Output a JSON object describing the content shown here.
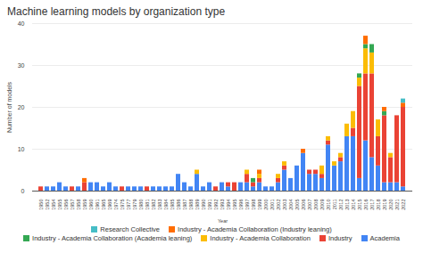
{
  "chart_data": {
    "type": "bar",
    "stacked": true,
    "grid": true,
    "legend": "bottom",
    "title": "Machine learning models by organization type",
    "x_label": "Year",
    "y_label": "Number of models",
    "categories": [
      "1950",
      "1952",
      "1954",
      "1955",
      "1956",
      "1957",
      "1958",
      "1959",
      "1960",
      "1961",
      "1965",
      "1969",
      "1974",
      "1975",
      "1977",
      "1979",
      "1980",
      "1981",
      "1982",
      "1983",
      "1984",
      "1985",
      "1986",
      "1987",
      "1988",
      "1989",
      "1990",
      "1991",
      "1992",
      "1993",
      "1994",
      "1995",
      "1996",
      "1997",
      "1998",
      "1999",
      "2000",
      "2001",
      "2002",
      "2003",
      "2004",
      "2005",
      "2006",
      "2007",
      "2008",
      "2009",
      "2010",
      "2011",
      "2012",
      "2013",
      "2014",
      "2015",
      "2016",
      "2017",
      "2018",
      "2019",
      "2020",
      "2021",
      "2022"
    ],
    "ylim": [
      0,
      40
    ],
    "yticks": [
      0,
      10,
      20,
      30,
      40
    ],
    "series": [
      {
        "name": "Academia",
        "color": "#4285f4",
        "values": [
          0,
          1,
          1,
          2,
          1,
          0,
          1,
          0,
          2,
          2,
          1,
          2,
          1,
          0,
          1,
          1,
          1,
          0,
          1,
          1,
          1,
          1,
          4,
          2,
          1,
          4,
          1,
          2,
          0,
          2,
          1,
          0,
          2,
          2,
          1,
          2,
          1,
          1,
          2,
          5,
          3,
          6,
          9,
          4,
          4,
          3,
          11,
          6,
          7,
          13,
          13,
          3,
          12,
          8,
          6,
          2,
          2,
          2,
          1
        ]
      },
      {
        "name": "Industry",
        "color": "#ea4335",
        "values": [
          1,
          0,
          0,
          0,
          0,
          1,
          0,
          2,
          0,
          0,
          0,
          0,
          0,
          1,
          0,
          0,
          0,
          1,
          0,
          0,
          0,
          0,
          0,
          0,
          0,
          0,
          0,
          0,
          1,
          0,
          1,
          2,
          0,
          2,
          1,
          1,
          0,
          0,
          1,
          1,
          0,
          0,
          0,
          1,
          1,
          1,
          1,
          0,
          1,
          0,
          2,
          22,
          16,
          20,
          7,
          16,
          6,
          16,
          19
        ]
      },
      {
        "name": "Industry - Academia Collaboration",
        "color": "#fbbc04",
        "values": [
          0,
          0,
          0,
          0,
          0,
          0,
          0,
          0,
          0,
          0,
          0,
          0,
          0,
          0,
          0,
          0,
          0,
          0,
          0,
          0,
          0,
          0,
          0,
          0,
          0,
          1,
          0,
          0,
          0,
          0,
          0,
          0,
          0,
          1,
          0,
          1,
          0,
          0,
          1,
          1,
          0,
          0,
          0,
          0,
          0,
          2,
          1,
          1,
          1,
          3,
          4,
          2,
          6,
          5,
          4,
          0,
          1,
          0,
          0
        ]
      },
      {
        "name": "Industry - Academia Collaboration (Academia leaning)",
        "color": "#34a853",
        "values": [
          0,
          0,
          0,
          0,
          0,
          0,
          0,
          0,
          0,
          0,
          0,
          0,
          0,
          0,
          0,
          0,
          0,
          0,
          0,
          0,
          0,
          0,
          0,
          0,
          0,
          0,
          0,
          0,
          0,
          0,
          0,
          0,
          0,
          0,
          1,
          0,
          0,
          0,
          0,
          0,
          0,
          0,
          0,
          0,
          0,
          0,
          0,
          0,
          0,
          0,
          0,
          1,
          1,
          2,
          0,
          1,
          0,
          0,
          0
        ]
      },
      {
        "name": "Industry - Academia Collaboration (Industry leaning)",
        "color": "#ff6d01",
        "values": [
          0,
          0,
          0,
          0,
          0,
          0,
          0,
          1,
          0,
          0,
          0,
          0,
          0,
          0,
          0,
          0,
          0,
          0,
          0,
          0,
          0,
          0,
          0,
          0,
          0,
          0,
          0,
          0,
          0,
          0,
          0,
          0,
          0,
          0,
          0,
          1,
          0,
          0,
          0,
          0,
          0,
          0,
          1,
          0,
          0,
          0,
          0,
          0,
          0,
          0,
          0,
          0,
          2,
          0,
          0,
          1,
          0,
          0,
          1
        ]
      },
      {
        "name": "Research Collective",
        "color": "#46bdc6",
        "values": [
          0,
          0,
          0,
          0,
          0,
          0,
          0,
          0,
          0,
          0,
          0,
          0,
          0,
          0,
          0,
          0,
          0,
          0,
          0,
          0,
          0,
          0,
          0,
          0,
          0,
          0,
          0,
          0,
          0,
          0,
          0,
          0,
          0,
          0,
          0,
          0,
          0,
          0,
          0,
          0,
          0,
          0,
          0,
          0,
          0,
          0,
          0,
          0,
          0,
          0,
          0,
          0,
          0,
          0,
          0,
          0,
          0,
          0,
          1
        ]
      }
    ]
  }
}
